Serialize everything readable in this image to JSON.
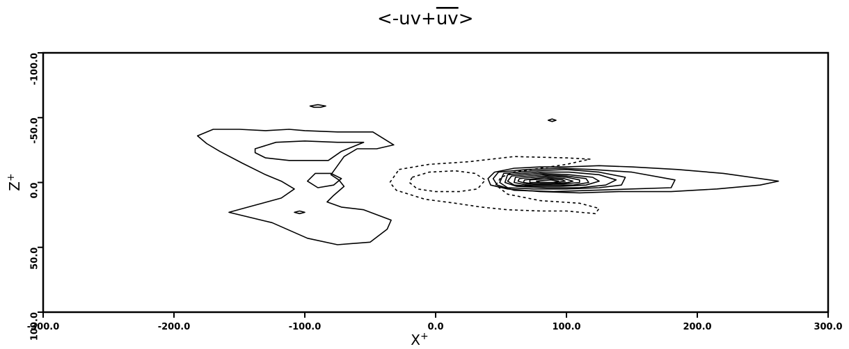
{
  "chart_data": {
    "type": "contour",
    "title": "<-uv+",
    "title_overbar": "uv",
    "title_end": ">",
    "xlabel": "X",
    "xlabel_sup": "+",
    "ylabel": "Z",
    "ylabel_sup": "+",
    "xlim": [
      -300,
      300
    ],
    "ylim": [
      -100,
      100
    ],
    "y_axis_direction": "down",
    "x_ticks": [
      -300,
      -200,
      -100,
      0,
      100,
      200,
      300
    ],
    "x_tick_labels": [
      "-300.0",
      "-200.0",
      "-100.0",
      "0.0",
      "100.0",
      "200.0",
      "300.0"
    ],
    "y_ticks": [
      -100,
      -50,
      0,
      50,
      100
    ],
    "y_tick_labels": [
      "-100.0",
      "-50.0",
      "0.0",
      "50.0",
      "100.0"
    ],
    "grid": false,
    "legend": "none",
    "contours": [
      {
        "style": "solid",
        "points": [
          [
            -182,
            -36
          ],
          [
            -170,
            -41
          ],
          [
            -150,
            -41
          ],
          [
            -130,
            -40
          ],
          [
            -112,
            -41
          ],
          [
            -100,
            -40
          ],
          [
            -75,
            -39
          ],
          [
            -48,
            -39
          ],
          [
            -32,
            -29
          ],
          [
            -45,
            -26
          ],
          [
            -60,
            -26
          ],
          [
            -70,
            -20
          ],
          [
            -75,
            -13
          ],
          [
            -80,
            -6
          ],
          [
            -74,
            -2
          ],
          [
            -70,
            3
          ],
          [
            -78,
            10
          ],
          [
            -83,
            15
          ],
          [
            -72,
            19
          ],
          [
            -55,
            21
          ],
          [
            -34,
            29
          ],
          [
            -37,
            36
          ],
          [
            -50,
            46
          ],
          [
            -75,
            48
          ],
          [
            -98,
            43
          ],
          [
            -125,
            31
          ],
          [
            -158,
            23
          ],
          [
            -140,
            18
          ],
          [
            -118,
            12
          ],
          [
            -108,
            5
          ],
          [
            -118,
            -1
          ],
          [
            -130,
            -6
          ],
          [
            -148,
            -15
          ],
          [
            -165,
            -24
          ],
          [
            -175,
            -30
          ]
        ]
      },
      {
        "style": "solid",
        "points": [
          [
            -138,
            -26
          ],
          [
            -122,
            -31
          ],
          [
            -100,
            -32
          ],
          [
            -75,
            -31
          ],
          [
            -55,
            -31
          ],
          [
            -72,
            -24
          ],
          [
            -82,
            -17
          ],
          [
            -96,
            -17
          ],
          [
            -112,
            -17
          ],
          [
            -130,
            -19
          ],
          [
            -138,
            -23
          ]
        ]
      },
      {
        "style": "solid",
        "points": [
          [
            -92,
            -7
          ],
          [
            -80,
            -7
          ],
          [
            -72,
            -3
          ],
          [
            -78,
            2
          ],
          [
            -90,
            4
          ],
          [
            -98,
            -1
          ]
        ]
      },
      {
        "style": "solid",
        "points": [
          [
            -96,
            -59
          ],
          [
            -90,
            -60
          ],
          [
            -84,
            -59
          ],
          [
            -88,
            -58
          ],
          [
            -93,
            -58
          ]
        ]
      },
      {
        "style": "solid",
        "points": [
          [
            -108,
            23
          ],
          [
            -104,
            22
          ],
          [
            -100,
            23
          ],
          [
            -104,
            24
          ]
        ]
      },
      {
        "style": "solid",
        "points": [
          [
            86,
            -48
          ],
          [
            89,
            -49
          ],
          [
            92,
            -48
          ],
          [
            89,
            -47
          ]
        ]
      },
      {
        "style": "dashed",
        "points": [
          [
            -28,
            -10
          ],
          [
            -5,
            -14
          ],
          [
            25,
            -16
          ],
          [
            60,
            -20
          ],
          [
            100,
            -19
          ],
          [
            118,
            -18
          ],
          [
            100,
            -14
          ],
          [
            80,
            -11
          ],
          [
            60,
            -8
          ],
          [
            50,
            -4
          ],
          [
            46,
            2
          ],
          [
            55,
            9
          ],
          [
            80,
            14
          ],
          [
            110,
            16
          ],
          [
            125,
            20
          ],
          [
            122,
            24
          ],
          [
            100,
            22
          ],
          [
            80,
            22
          ],
          [
            55,
            21
          ],
          [
            35,
            19
          ],
          [
            15,
            16
          ],
          [
            -8,
            13
          ],
          [
            -30,
            6
          ],
          [
            -35,
            0
          ]
        ]
      },
      {
        "style": "dashed",
        "points": [
          [
            -18,
            -4
          ],
          [
            -5,
            -8
          ],
          [
            15,
            -9
          ],
          [
            30,
            -7
          ],
          [
            38,
            -2
          ],
          [
            32,
            5
          ],
          [
            18,
            7
          ],
          [
            0,
            7
          ],
          [
            -14,
            5
          ],
          [
            -20,
            0
          ]
        ]
      },
      {
        "style": "solid",
        "points": [
          [
            45,
            -8
          ],
          [
            60,
            -11
          ],
          [
            80,
            -12
          ],
          [
            100,
            -12
          ],
          [
            125,
            -13
          ],
          [
            150,
            -12
          ],
          [
            185,
            -10
          ],
          [
            220,
            -7
          ],
          [
            262,
            -1
          ],
          [
            248,
            2
          ],
          [
            215,
            5
          ],
          [
            180,
            7
          ],
          [
            140,
            7
          ],
          [
            110,
            8
          ],
          [
            80,
            7
          ],
          [
            55,
            5
          ],
          [
            42,
            2
          ],
          [
            40,
            -3
          ]
        ]
      },
      {
        "style": "solid",
        "points": [
          [
            48,
            -8
          ],
          [
            70,
            -10
          ],
          [
            95,
            -11
          ],
          [
            120,
            -10
          ],
          [
            150,
            -8
          ],
          [
            183,
            -2
          ],
          [
            180,
            4
          ],
          [
            150,
            5
          ],
          [
            120,
            6
          ],
          [
            90,
            7
          ],
          [
            60,
            6
          ],
          [
            47,
            2
          ],
          [
            44,
            -3
          ]
        ]
      },
      {
        "style": "solid",
        "points": [
          [
            52,
            -7
          ],
          [
            75,
            -9
          ],
          [
            100,
            -10
          ],
          [
            125,
            -8
          ],
          [
            145,
            -4
          ],
          [
            142,
            2
          ],
          [
            125,
            4
          ],
          [
            100,
            5
          ],
          [
            75,
            5
          ],
          [
            55,
            4
          ],
          [
            49,
            0
          ]
        ]
      },
      {
        "style": "solid",
        "points": [
          [
            55,
            -6
          ],
          [
            78,
            -8
          ],
          [
            102,
            -8
          ],
          [
            125,
            -6
          ],
          [
            138,
            -2
          ],
          [
            130,
            2
          ],
          [
            110,
            4
          ],
          [
            85,
            4
          ],
          [
            62,
            3
          ],
          [
            53,
            0
          ]
        ]
      },
      {
        "style": "solid",
        "points": [
          [
            58,
            -5
          ],
          [
            80,
            -7
          ],
          [
            102,
            -6
          ],
          [
            120,
            -4
          ],
          [
            125,
            -1
          ],
          [
            115,
            2
          ],
          [
            95,
            3
          ],
          [
            75,
            3
          ],
          [
            60,
            2
          ],
          [
            55,
            -1
          ]
        ]
      },
      {
        "style": "solid",
        "points": [
          [
            61,
            -4
          ],
          [
            82,
            -6
          ],
          [
            100,
            -5
          ],
          [
            115,
            -3
          ],
          [
            117,
            0
          ],
          [
            105,
            2
          ],
          [
            88,
            2
          ],
          [
            70,
            2
          ],
          [
            60,
            0
          ]
        ]
      },
      {
        "style": "solid",
        "points": [
          [
            64,
            -3
          ],
          [
            84,
            -5
          ],
          [
            100,
            -4
          ],
          [
            110,
            -2
          ],
          [
            110,
            0
          ],
          [
            98,
            1
          ],
          [
            84,
            1
          ],
          [
            70,
            1
          ],
          [
            63,
            -1
          ]
        ]
      },
      {
        "style": "solid",
        "points": [
          [
            68,
            -2
          ],
          [
            84,
            -4
          ],
          [
            98,
            -3
          ],
          [
            105,
            -1
          ],
          [
            101,
            0
          ],
          [
            88,
            1
          ],
          [
            75,
            1
          ],
          [
            67,
            0
          ]
        ]
      },
      {
        "style": "solid",
        "points": [
          [
            72,
            -2
          ],
          [
            86,
            -3
          ],
          [
            97,
            -2
          ],
          [
            99,
            -1
          ],
          [
            92,
            0
          ],
          [
            80,
            0
          ],
          [
            72,
            0
          ]
        ]
      },
      {
        "style": "solid",
        "points": [
          [
            77,
            -1
          ],
          [
            88,
            -2
          ],
          [
            94,
            -1
          ],
          [
            90,
            0
          ],
          [
            80,
            0
          ]
        ]
      }
    ]
  }
}
